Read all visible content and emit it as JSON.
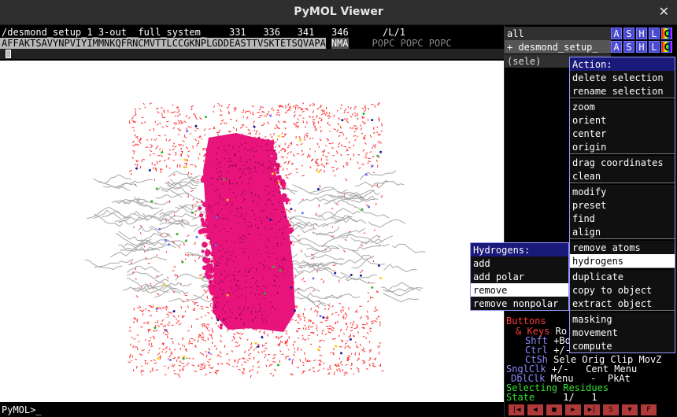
{
  "window": {
    "title": "PyMOL Viewer",
    "close_label": "✕"
  },
  "sequence": {
    "header": "/desmond_setup_1_3-out__full_system_    331   336   341   346      /L/1",
    "residues": "AFFAKTSAVYNPVIYIMMNKQFRNCMVTTLCCGKNPLGDDEASTTVSKTETSQVAPA",
    "ligand": "NMA",
    "lipids": "POPC POPC POPC"
  },
  "command": {
    "prompt": "PyMOL>_"
  },
  "objects": [
    {
      "name": "all",
      "buttons": [
        "A",
        "S",
        "H",
        "L",
        "C"
      ]
    },
    {
      "name": "+ desmond_setup_",
      "buttons": [
        "A",
        "S",
        "H",
        "L",
        "C"
      ]
    },
    {
      "name": "(sele)"
    }
  ],
  "action_menu": {
    "title": "Action:",
    "groups": [
      [
        "delete selection",
        "rename selection"
      ],
      [
        "zoom",
        "orient",
        "center",
        "origin"
      ],
      [
        "drag coordinates",
        "clean"
      ],
      [
        "modify",
        "preset",
        "find",
        "align"
      ],
      [
        "remove atoms",
        "hydrogens"
      ],
      [
        "duplicate",
        "copy to object",
        "extract object"
      ],
      [
        "masking",
        "movement",
        "compute"
      ]
    ],
    "selected": "hydrogens"
  },
  "hydrogens_menu": {
    "title": "Hydrogens:",
    "items": [
      "add",
      "add polar",
      "remove",
      "remove nonpolar"
    ],
    "selected": "remove"
  },
  "mouse_panel": {
    "buttons_label": "Buttons",
    "keys_label": "& Keys",
    "keys_value": "Ro",
    "shft": "Shft",
    "shft_value": "+Bo",
    "ctrl": "Ctrl",
    "ctrl_value": "+/-",
    "ctsh": "CtSh",
    "ctsh_value": "Sele Orig Clip MovZ",
    "sngl": "SnglClk",
    "sngl_value": "+/-   Cent Menu",
    "dbl": "DblClk",
    "dbl_value": "Menu   -  PkAt",
    "selecting": "Selecting Residues",
    "state_label": "State",
    "state_value": "1/",
    "state_total": "1"
  },
  "playbar": [
    "|◀",
    "◀",
    "■",
    "▶",
    "▶|",
    "S",
    "▼",
    "F"
  ],
  "colors": {
    "protein": "#e8147c",
    "water": "#ff2b2b",
    "lipid": "#a8a8a8",
    "panel_button": "#4a4ad0",
    "menu_border": "#9999ff"
  }
}
